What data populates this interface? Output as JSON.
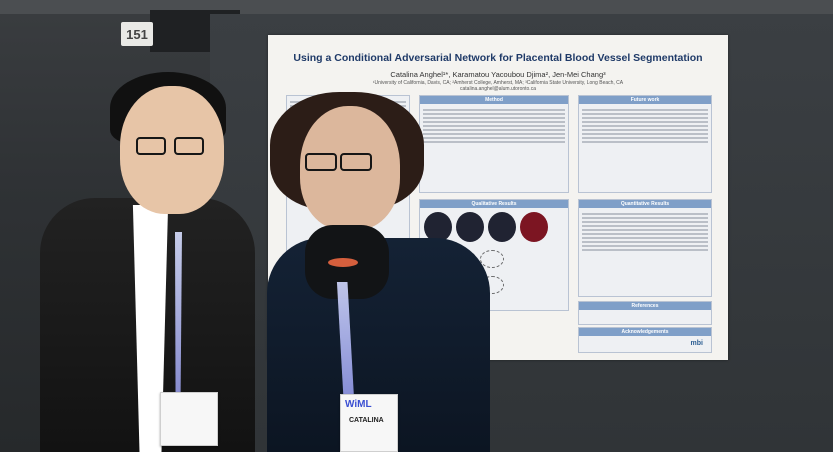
{
  "board": {
    "number": "151"
  },
  "poster": {
    "title": "Using a Conditional Adversarial Network for Placental Blood Vessel Segmentation",
    "authors": "Catalina Anghel¹*, Karamatou Yacoubou Djima², Jen-Mei Chang³",
    "affiliations": "¹University of California, Davis, CA; ²Amherst College, Amherst, MA; ³California State University, Long Beach, CA",
    "email": "catalina.anghel@alum.utoronto.ca",
    "sections": {
      "method": "Method",
      "future_work": "Future work",
      "qualitative_results": "Qualitative Results",
      "quantitative_results": "Quantitative Results",
      "references": "References",
      "acknowledgements": "Acknowledgements"
    },
    "logos": {
      "mbi": "mbi"
    }
  },
  "badges": {
    "right_event": "WiML",
    "right_name": "CATALINA"
  }
}
